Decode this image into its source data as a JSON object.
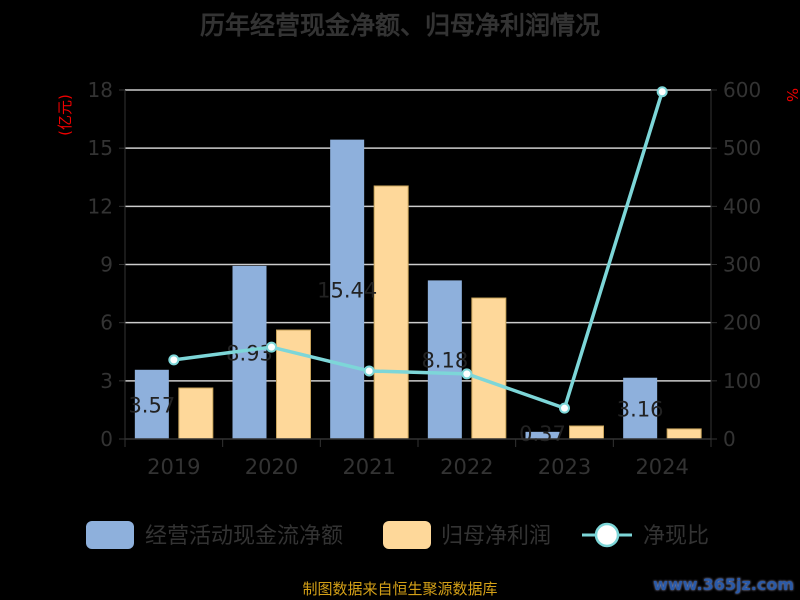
{
  "title": "历年经营现金净额、归母净利润情况",
  "source": "制图数据来自恒生聚源数据库",
  "watermark": "www.365jz.com",
  "chart_data": {
    "type": "bar",
    "title": "历年经营现金净额、归母净利润情况",
    "categories": [
      "2019",
      "2020",
      "2021",
      "2022",
      "2023",
      "2024"
    ],
    "ylabel": "(亿元)",
    "y2label": "%",
    "ylim": [
      0,
      18
    ],
    "yticks": [
      "0",
      "3",
      "6",
      "9",
      "12",
      "15",
      "18"
    ],
    "y2lim": [
      0,
      600
    ],
    "y2ticks": [
      "0",
      "100",
      "200",
      "300",
      "400",
      "500",
      "600"
    ],
    "grid": true,
    "legend_position": "bottom",
    "series": [
      {
        "name": "经营活动现金流净额",
        "type": "bar",
        "color": "#8eb0dc",
        "values": [
          3.57,
          8.93,
          15.44,
          8.18,
          0.37,
          3.16
        ],
        "labels": [
          "3.57",
          "8.93",
          "15.44",
          "8.18",
          "0.37",
          "3.16"
        ]
      },
      {
        "name": "归母净利润",
        "type": "bar",
        "color": "#fed89a",
        "values": [
          2.63,
          5.62,
          13.05,
          7.27,
          0.67,
          0.52
        ]
      },
      {
        "name": "净现比",
        "type": "line",
        "axis": "right",
        "color": "#7dd6d8",
        "values": [
          136,
          158,
          117,
          112,
          53,
          597
        ]
      }
    ]
  }
}
